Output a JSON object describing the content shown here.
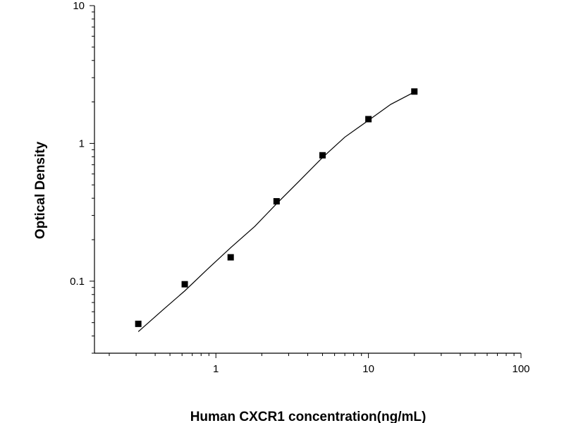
{
  "chart_data": {
    "type": "scatter",
    "title": "",
    "xlabel": "Human CXCR1 concentration(ng/mL)",
    "ylabel": "Optical Density",
    "x_scale": "log",
    "y_scale": "log",
    "xlim": [
      0.16,
      100
    ],
    "ylim": [
      0.03,
      10
    ],
    "x_ticks": [
      {
        "value": 1,
        "label": "1"
      },
      {
        "value": 10,
        "label": "10"
      },
      {
        "value": 100,
        "label": "100"
      }
    ],
    "y_ticks": [
      {
        "value": 0.1,
        "label": "0.1"
      },
      {
        "value": 1,
        "label": "1"
      },
      {
        "value": 10,
        "label": "10"
      }
    ],
    "grid": false,
    "legend": "none",
    "series": [
      {
        "marker": "square",
        "color": "#000000",
        "x": [
          0.31,
          0.625,
          1.25,
          2.5,
          5,
          10,
          20
        ],
        "y": [
          0.049,
          0.095,
          0.149,
          0.38,
          0.82,
          1.5,
          2.38
        ]
      }
    ],
    "fit_curve": {
      "color": "#000000",
      "x": [
        0.31,
        0.45,
        0.625,
        0.9,
        1.25,
        1.8,
        2.5,
        3.5,
        5,
        7,
        10,
        14,
        20
      ],
      "y": [
        0.043,
        0.062,
        0.085,
        0.125,
        0.175,
        0.25,
        0.365,
        0.53,
        0.79,
        1.11,
        1.47,
        1.92,
        2.36
      ]
    }
  }
}
